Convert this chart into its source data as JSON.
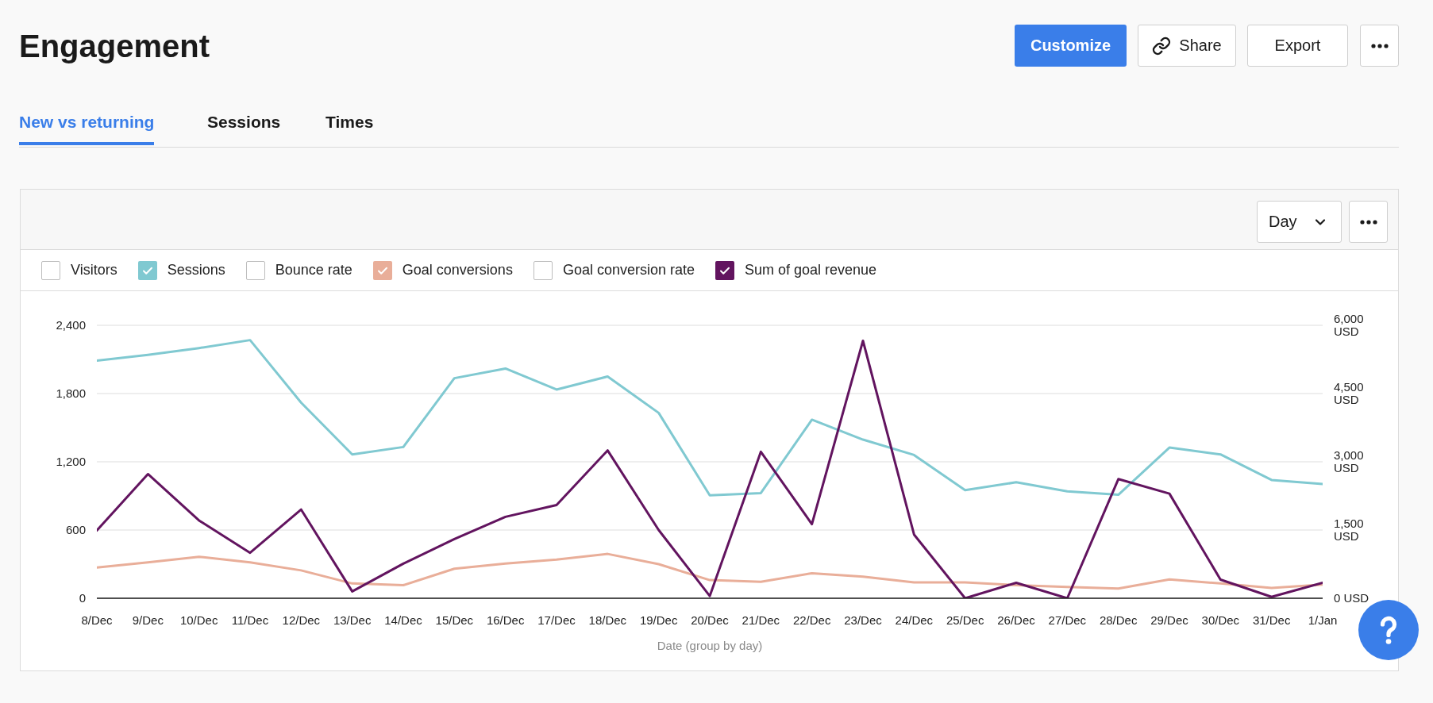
{
  "chart_data": {
    "type": "line",
    "title": "Engagement",
    "xlabel": "Date (group by day)",
    "annotations": [
      "New vs returning",
      "Sessions",
      "Times",
      "Customize",
      "Share",
      "Export",
      "Day"
    ],
    "categories": [
      "8/Dec",
      "9/Dec",
      "10/Dec",
      "11/Dec",
      "12/Dec",
      "13/Dec",
      "14/Dec",
      "15/Dec",
      "16/Dec",
      "17/Dec",
      "18/Dec",
      "19/Dec",
      "20/Dec",
      "21/Dec",
      "22/Dec",
      "23/Dec",
      "24/Dec",
      "25/Dec",
      "26/Dec",
      "27/Dec",
      "28/Dec",
      "29/Dec",
      "30/Dec",
      "31/Dec",
      "1/Jan"
    ],
    "series": [
      {
        "name": "Visitors",
        "values": [
          null,
          null,
          null,
          null,
          null,
          null,
          null,
          null,
          null,
          null,
          null,
          null,
          null,
          null,
          null,
          null,
          null,
          null,
          null,
          null,
          null,
          null,
          null,
          null,
          null
        ]
      },
      {
        "name": "Sessions",
        "color": "#80c9d1",
        "values": [
          2090,
          2140,
          2200,
          2270,
          1720,
          1265,
          1330,
          1935,
          2020,
          1835,
          1950,
          1630,
          905,
          925,
          1570,
          1395,
          1260,
          950,
          1020,
          940,
          910,
          1325,
          1265,
          1040,
          1005
        ]
      },
      {
        "name": "Bounce rate",
        "values": [
          null,
          null,
          null,
          null,
          null,
          null,
          null,
          null,
          null,
          null,
          null,
          null,
          null,
          null,
          null,
          null,
          null,
          null,
          null,
          null,
          null,
          null,
          null,
          null,
          null
        ]
      },
      {
        "name": "Goal conversions",
        "color": "#e9ae99",
        "values": [
          270,
          315,
          365,
          315,
          245,
          130,
          115,
          260,
          305,
          340,
          390,
          300,
          160,
          145,
          220,
          190,
          140,
          140,
          115,
          100,
          85,
          165,
          130,
          90,
          120
        ]
      },
      {
        "name": "Goal conversion rate",
        "values": [
          null,
          null,
          null,
          null,
          null,
          null,
          null,
          null,
          null,
          null,
          null,
          null,
          null,
          null,
          null,
          null,
          null,
          null,
          null,
          null,
          null,
          null,
          null,
          null,
          null
        ]
      },
      {
        "name": "Sum of goal revenue",
        "color": "#62145f",
        "axis": "y2",
        "values": [
          1490,
          2730,
          1710,
          1000,
          1950,
          150,
          760,
          1300,
          1790,
          2050,
          3250,
          1500,
          50,
          3220,
          1630,
          5660,
          1400,
          0,
          340,
          0,
          2620,
          2300,
          410,
          30,
          340
        ]
      }
    ],
    "ylim": [
      0,
      2400
    ],
    "yticks": [
      0,
      600,
      {
        "value": 1200,
        "label": "1,200"
      },
      {
        "value": 1800,
        "label": "1,800"
      },
      {
        "value": 2400,
        "label": "2,400"
      }
    ],
    "y2lim": [
      0,
      6000
    ],
    "y2ticks": [
      {
        "value": 0,
        "label": "0 USD"
      },
      {
        "value": 1500,
        "label": "1,500 USD"
      },
      {
        "value": 3000,
        "label": "3,000 USD"
      },
      {
        "value": 4500,
        "label": "4,500 USD"
      },
      {
        "value": 6000,
        "label": "6,000 USD"
      }
    ],
    "grid": "y",
    "legend": "top",
    "marker": "none",
    "line_style": "solid"
  }
}
